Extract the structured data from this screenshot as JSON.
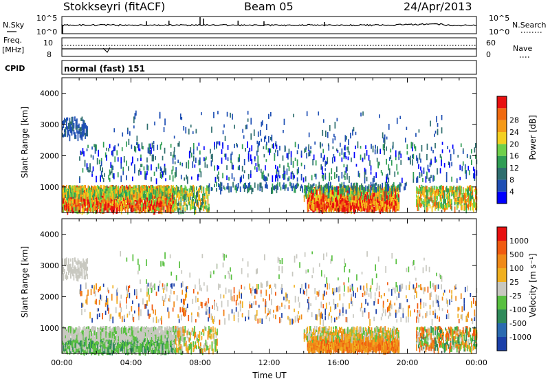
{
  "header": {
    "station": "Stokkseyri (fitACF)",
    "beam": "Beam 05",
    "date": "24/Apr/2013"
  },
  "top_panels": {
    "nsky_label": "N.Sky",
    "nsearch_label": "N.Search",
    "noise_ticks_left": [
      "10^5",
      "10^0"
    ],
    "noise_ticks_right": [
      "10^5",
      "10^0"
    ],
    "freq_label_1": "Freq.",
    "freq_label_2": "[MHz]",
    "freq_ticks": [
      "10",
      "8"
    ],
    "nave_label": "Nave",
    "nave_ticks": [
      "60",
      "0"
    ],
    "cpid_label": "CPID",
    "cpid_value": "normal (fast) 151"
  },
  "chart_data": [
    {
      "type": "heatmap",
      "name": "power",
      "ylabel": "Slant Range [km]",
      "xlabel": "",
      "ylim": [
        180,
        4500
      ],
      "yticks": [
        "1000",
        "2000",
        "3000",
        "4000"
      ],
      "xlim_hours": [
        0,
        24
      ],
      "colorbar_label": "Power [dB]",
      "colorbar_ticks": [
        "4",
        "8",
        "12",
        "16",
        "20",
        "24",
        "28"
      ],
      "colorbar_colors": [
        "#0000ff",
        "#1f4fb4",
        "#2e6e6e",
        "#2f9d54",
        "#6fd04a",
        "#f4d020",
        "#f59a18",
        "#f06a10",
        "#e81010"
      ]
    },
    {
      "type": "heatmap",
      "name": "velocity",
      "ylabel": "Slant Range [km]",
      "xlabel": "Time UT",
      "ylim": [
        180,
        4500
      ],
      "yticks": [
        "1000",
        "2000",
        "3000",
        "4000"
      ],
      "xlim_hours": [
        0,
        24
      ],
      "xticks": [
        "00:00",
        "04:00",
        "08:00",
        "12:00",
        "16:00",
        "20:00",
        "00:00"
      ],
      "colorbar_label": "Velocity [m s⁻¹]",
      "colorbar_ticks": [
        "1000",
        "500",
        "100",
        "25",
        "-25",
        "-100",
        "-500",
        "-1000"
      ],
      "colorbar_colors": [
        "#1a3fa8",
        "#2a6ab0",
        "#2f8a5a",
        "#58c040",
        "#c8c8c0",
        "#f0b020",
        "#f08a18",
        "#f05a10",
        "#e81010"
      ]
    }
  ]
}
